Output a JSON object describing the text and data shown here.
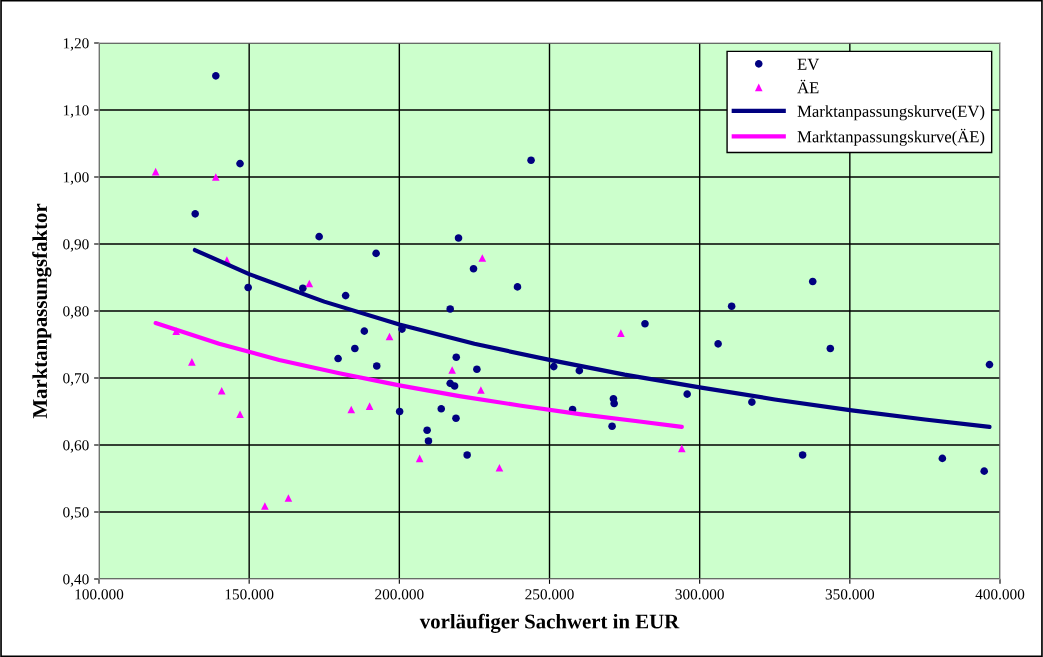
{
  "chart_data": {
    "type": "scatter",
    "xlabel": "vorläufiger Sachwert in EUR",
    "ylabel": "Marktanpassungsfaktor",
    "xlim": [
      100000,
      400000
    ],
    "xticks": [
      {
        "value": 100000,
        "label": "100.000"
      },
      {
        "value": 150000,
        "label": "150.000"
      },
      {
        "value": 200000,
        "label": "200.000"
      },
      {
        "value": 250000,
        "label": "250.000"
      },
      {
        "value": 300000,
        "label": "300.000"
      },
      {
        "value": 350000,
        "label": "350.000"
      },
      {
        "value": 400000,
        "label": "400.000"
      }
    ],
    "ylim": [
      0.4,
      1.2
    ],
    "yticks": [
      {
        "value": 0.4,
        "label": "0,40"
      },
      {
        "value": 0.5,
        "label": "0,50"
      },
      {
        "value": 0.6,
        "label": "0,60"
      },
      {
        "value": 0.7,
        "label": "0,70"
      },
      {
        "value": 0.8,
        "label": "0,80"
      },
      {
        "value": 0.9,
        "label": "0,90"
      },
      {
        "value": 1.0,
        "label": "1,00"
      },
      {
        "value": 1.1,
        "label": "1,10"
      },
      {
        "value": 1.2,
        "label": "1,20"
      }
    ],
    "grid": true,
    "legend": "top right",
    "series": [
      {
        "name": "EV",
        "marker": "circle",
        "color": "#000080",
        "x": [
          138900,
          146960,
          132030,
          173300,
          192260,
          149670,
          167870,
          182120,
          188340,
          200890,
          185190,
          179610,
          192480,
          200100,
          213950,
          209250,
          209700,
          219710,
          224700,
          239340,
          216930,
          243860,
          218950,
          225820,
          216930,
          218400,
          218860,
          222580,
          251410,
          259930,
          257680,
          271290,
          271530,
          270840,
          281790,
          295840,
          306140,
          310650,
          317380,
          337640,
          343500,
          334280,
          380810,
          394740,
          396500
        ],
        "values": [
          1.151,
          1.02,
          0.945,
          0.911,
          0.886,
          0.835,
          0.834,
          0.823,
          0.77,
          0.773,
          0.744,
          0.729,
          0.718,
          0.65,
          0.654,
          0.622,
          0.606,
          0.909,
          0.863,
          0.836,
          0.803,
          1.025,
          0.731,
          0.713,
          0.692,
          0.688,
          0.64,
          0.585,
          0.717,
          0.711,
          0.653,
          0.669,
          0.662,
          0.628,
          0.781,
          0.676,
          0.751,
          0.807,
          0.664,
          0.844,
          0.744,
          0.585,
          0.58,
          0.561,
          0.72
        ]
      },
      {
        "name": "ÄE",
        "marker": "triangle",
        "color": "#ff00ff",
        "x": [
          118860,
          138890,
          142580,
          170030,
          125700,
          130930,
          140850,
          146960,
          155230,
          163070,
          183990,
          190100,
          196730,
          206770,
          217590,
          227630,
          227150,
          233330,
          273770,
          294050
        ],
        "values": [
          1.008,
          1.0,
          0.876,
          0.841,
          0.77,
          0.724,
          0.681,
          0.646,
          0.509,
          0.521,
          0.653,
          0.658,
          0.762,
          0.58,
          0.712,
          0.879,
          0.682,
          0.566,
          0.767,
          0.595
        ]
      },
      {
        "name": "Marktanpassungskurve(EV)",
        "type": "line",
        "marker": "none",
        "line_style": "solid",
        "color": "#000080",
        "x": [
          131930,
          150000,
          175000,
          200000,
          225000,
          250000,
          275000,
          300000,
          325000,
          350000,
          375000,
          396500
        ],
        "values": [
          0.891,
          0.855,
          0.814,
          0.78,
          0.751,
          0.727,
          0.705,
          0.686,
          0.668,
          0.652,
          0.638,
          0.627
        ]
      },
      {
        "name": "Marktanpassungskurve(ÄE)",
        "type": "line",
        "marker": "none",
        "line_style": "solid",
        "color": "#ff00ff",
        "x": [
          118860,
          140000,
          160000,
          180000,
          200000,
          220000,
          240000,
          260000,
          280000,
          294050
        ],
        "values": [
          0.782,
          0.751,
          0.727,
          0.707,
          0.689,
          0.673,
          0.659,
          0.646,
          0.635,
          0.627
        ]
      }
    ]
  }
}
